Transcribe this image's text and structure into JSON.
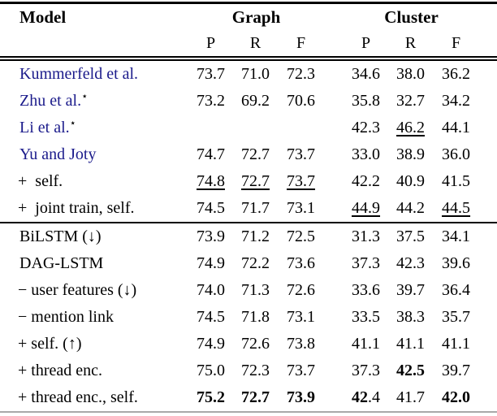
{
  "colors": {
    "citation_blue": "#1b1b8b",
    "rule_black": "#000000",
    "bottom_rule_gray": "#a9a9a9"
  },
  "table": {
    "header": {
      "model": "Model",
      "groups": [
        {
          "label": "Graph"
        },
        {
          "label": "Cluster"
        }
      ],
      "subcols": [
        "P",
        "R",
        "F",
        "P",
        "R",
        "F"
      ]
    },
    "sections": [
      {
        "rows": [
          {
            "label": {
              "text": "Kummerfeld et al.",
              "cite": true
            },
            "cells": [
              "73.7",
              "71.0",
              "72.3",
              "34.6",
              "38.0",
              "36.2"
            ]
          },
          {
            "label": {
              "text": "Zhu et al.",
              "cite": true,
              "star": "⋆"
            },
            "cells": [
              "73.2",
              "69.2",
              "70.6",
              "35.8",
              "32.7",
              "34.2"
            ]
          },
          {
            "label": {
              "text": "Li et al.",
              "cite": true,
              "star": "⋆"
            },
            "cells": [
              "",
              "",
              "",
              "42.3",
              {
                "t": "46.2",
                "u": true
              },
              "44.1"
            ]
          },
          {
            "label": {
              "text": "Yu and Joty",
              "cite": true
            },
            "cells": [
              "74.7",
              "72.7",
              "73.7",
              "33.0",
              "38.9",
              "36.0"
            ]
          },
          {
            "label": {
              "text": "+  self.",
              "indent": true
            },
            "cells": [
              {
                "t": "74.8",
                "u": true
              },
              {
                "t": "72.7",
                "u": true
              },
              {
                "t": "73.7",
                "u": true
              },
              "42.2",
              "40.9",
              "41.5"
            ]
          },
          {
            "label": {
              "text": "+  joint train, self.",
              "indent": true
            },
            "cells": [
              "74.5",
              "71.7",
              "73.1",
              {
                "t": "44.9",
                "u": true
              },
              "44.2",
              {
                "t": "44.5",
                "u": true
              }
            ]
          }
        ]
      },
      {
        "rows": [
          {
            "label": {
              "text": "BiLSTM (↓)"
            },
            "cells": [
              "73.9",
              "71.2",
              "72.5",
              "31.3",
              "37.5",
              "34.1"
            ]
          },
          {
            "label": {
              "text": "DAG-LSTM"
            },
            "cells": [
              "74.9",
              "72.2",
              "73.6",
              "37.3",
              "42.3",
              "39.6"
            ]
          },
          {
            "label": {
              "text": "− user features (↓)",
              "indent": true
            },
            "cells": [
              "74.0",
              "71.3",
              "72.6",
              "33.6",
              "39.7",
              "36.4"
            ]
          },
          {
            "label": {
              "text": "− mention link",
              "indent": true
            },
            "cells": [
              "74.5",
              "71.8",
              "73.1",
              "33.5",
              "38.3",
              "35.7"
            ]
          },
          {
            "label": {
              "text": "+ self. (↑)",
              "indent": true
            },
            "cells": [
              "74.9",
              "72.6",
              "73.8",
              "41.1",
              "41.1",
              "41.1"
            ]
          },
          {
            "label": {
              "text": "+ thread enc.",
              "indent": true
            },
            "cells": [
              "75.0",
              "72.3",
              "73.7",
              "37.3",
              {
                "t": "42.5",
                "b": true
              },
              "39.7"
            ]
          },
          {
            "label": {
              "text": "+ thread enc., self.",
              "indent": true
            },
            "cells": [
              {
                "t": "75.2",
                "b": true
              },
              {
                "t": "72.7",
                "b": true
              },
              {
                "t": "73.9",
                "b": true
              },
              {
                "parts": [
                  {
                    "t": "42",
                    "b": true
                  },
                  {
                    "t": ".4"
                  }
                ]
              },
              "41.7",
              {
                "t": "42.0",
                "b": true
              }
            ]
          }
        ]
      }
    ]
  }
}
